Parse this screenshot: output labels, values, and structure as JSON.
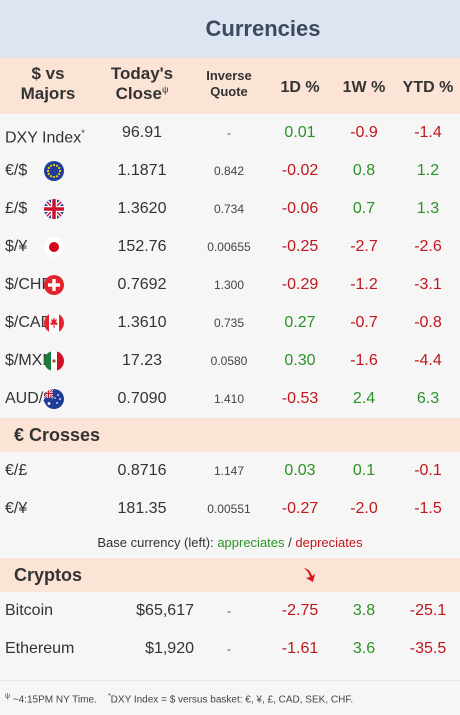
{
  "title": "Currencies",
  "header": {
    "majors_line1": "$ vs",
    "majors_line2": "Majors",
    "close_line1": "Today's",
    "close_line2": "Close",
    "close_mark": "ψ",
    "inverse_line1": "Inverse",
    "inverse_line2": "Quote",
    "d1": "1D %",
    "w1": "1W %",
    "ytd": "YTD %"
  },
  "majors": [
    {
      "name": "DXY Index",
      "mark": "*",
      "flag": "",
      "close": "96.91",
      "inverse": "-",
      "d1": "0.01",
      "w1": "-0.9",
      "ytd": "-1.4"
    },
    {
      "name": "€/$",
      "flag": "eu-flag-icon",
      "close": "1.1871",
      "inverse": "0.842",
      "d1": "-0.02",
      "w1": "0.8",
      "ytd": "1.2"
    },
    {
      "name": "£/$",
      "flag": "uk-flag-icon",
      "close": "1.3620",
      "inverse": "0.734",
      "d1": "-0.06",
      "w1": "0.7",
      "ytd": "1.3"
    },
    {
      "name": "$/¥",
      "flag": "japan-flag-icon",
      "close": "152.76",
      "inverse": "0.00655",
      "d1": "-0.25",
      "w1": "-2.7",
      "ytd": "-2.6"
    },
    {
      "name": "$/CHF",
      "flag": "swiss-flag-icon",
      "close": "0.7692",
      "inverse": "1.300",
      "d1": "-0.29",
      "w1": "-1.2",
      "ytd": "-3.1"
    },
    {
      "name": "$/CAD",
      "flag": "canada-flag-icon",
      "close": "1.3610",
      "inverse": "0.735",
      "d1": "0.27",
      "w1": "-0.7",
      "ytd": "-0.8"
    },
    {
      "name": "$/MXN",
      "flag": "mexico-flag-icon",
      "close": "17.23",
      "inverse": "0.0580",
      "d1": "0.30",
      "w1": "-1.6",
      "ytd": "-4.4"
    },
    {
      "name": "AUD/$",
      "flag": "australia-flag-icon",
      "close": "0.7090",
      "inverse": "1.410",
      "d1": "-0.53",
      "w1": "2.4",
      "ytd": "6.3"
    }
  ],
  "crosses": {
    "title": "€ Crosses",
    "rows": [
      {
        "name": "€/£",
        "close": "0.8716",
        "inverse": "1.147",
        "d1": "0.03",
        "w1": "0.1",
        "ytd": "-0.1"
      },
      {
        "name": "€/¥",
        "close": "181.35",
        "inverse": "0.00551",
        "d1": "-0.27",
        "w1": "-2.0",
        "ytd": "-1.5"
      }
    ]
  },
  "legend": {
    "prefix": "Base currency (left):",
    "appreciates": "appreciates",
    "sep": "/",
    "depreciates": "depreciates"
  },
  "cryptos": {
    "title": "Cryptos",
    "icon": "red-down-arrow-icon",
    "rows": [
      {
        "name": "Bitcoin",
        "close": "$65,617",
        "inverse": "-",
        "d1": "-2.75",
        "w1": "3.8",
        "ytd": "-25.1"
      },
      {
        "name": "Ethereum",
        "close": "$1,920",
        "inverse": "-",
        "d1": "-1.61",
        "w1": "3.6",
        "ytd": "-35.5"
      }
    ]
  },
  "footnote": {
    "mark1": "ψ",
    "text1": "~4:15PM NY Time.",
    "mark2": "*",
    "text2": "DXY Index = $ versus basket: €, ¥, £, CAD, SEK, CHF."
  },
  "colors": {
    "positive": "#2a9226",
    "negative": "#c0161c",
    "header_bg": "#fbe4d5",
    "title_bg": "#dde4f2"
  }
}
